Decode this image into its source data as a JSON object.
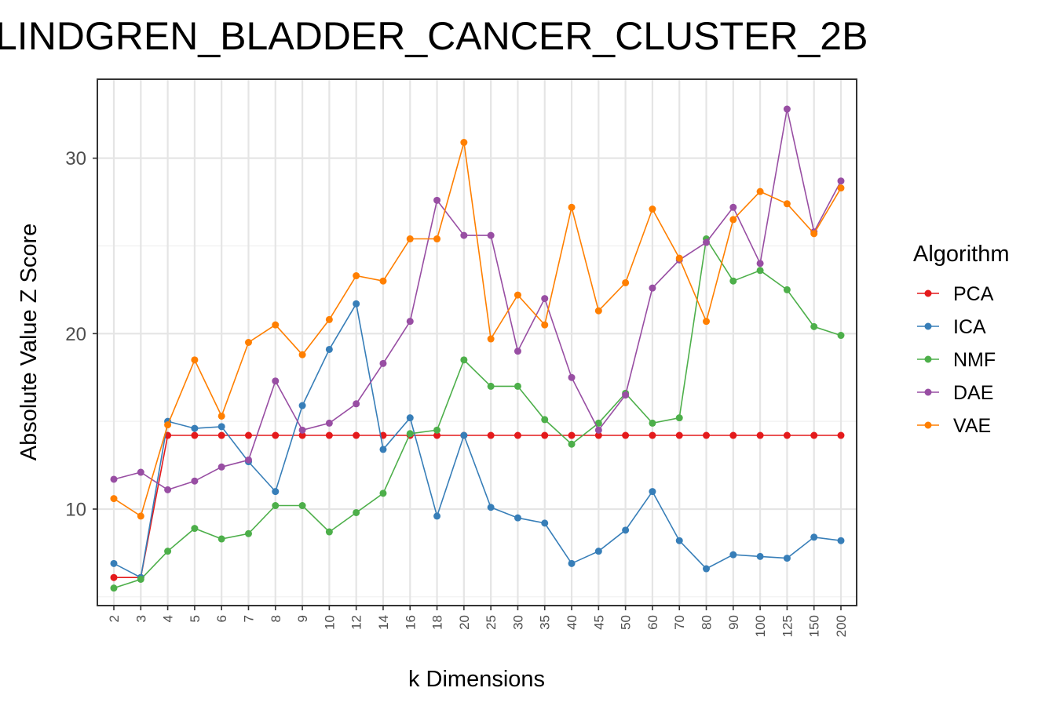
{
  "chart_data": {
    "type": "line",
    "title": "LINDGREN_BLADDER_CANCER_CLUSTER_2B",
    "xlabel": "k Dimensions",
    "ylabel": "Absolute Value Z Score",
    "categories": [
      "2",
      "3",
      "4",
      "5",
      "6",
      "7",
      "8",
      "9",
      "10",
      "12",
      "14",
      "16",
      "18",
      "20",
      "25",
      "30",
      "35",
      "40",
      "45",
      "50",
      "60",
      "70",
      "80",
      "90",
      "100",
      "125",
      "150",
      "200"
    ],
    "ylim": [
      4.5,
      34.5
    ],
    "yticks": [
      10,
      20,
      30
    ],
    "grid": true,
    "legend": {
      "title": "Algorithm",
      "position": "right"
    },
    "series": [
      {
        "name": "PCA",
        "color": "#e41a1c",
        "values": [
          6.1,
          6.1,
          14.2,
          14.2,
          14.2,
          14.2,
          14.2,
          14.2,
          14.2,
          14.2,
          14.2,
          14.2,
          14.2,
          14.2,
          14.2,
          14.2,
          14.2,
          14.2,
          14.2,
          14.2,
          14.2,
          14.2,
          14.2,
          14.2,
          14.2,
          14.2,
          14.2,
          14.2
        ]
      },
      {
        "name": "ICA",
        "color": "#377eb8",
        "values": [
          6.9,
          6.1,
          15.0,
          14.6,
          14.7,
          12.7,
          11.0,
          15.9,
          19.1,
          21.7,
          13.4,
          15.2,
          9.6,
          14.2,
          10.1,
          9.5,
          9.2,
          6.9,
          7.6,
          8.8,
          11.0,
          8.2,
          6.6,
          7.4,
          7.3,
          7.2,
          8.4,
          8.2
        ]
      },
      {
        "name": "NMF",
        "color": "#4daf4a",
        "values": [
          5.5,
          6.0,
          7.6,
          8.9,
          8.3,
          8.6,
          10.2,
          10.2,
          8.7,
          9.8,
          10.9,
          14.3,
          14.5,
          18.5,
          17.0,
          17.0,
          15.1,
          13.7,
          14.9,
          16.6,
          14.9,
          15.2,
          25.4,
          23.0,
          23.6,
          22.5,
          20.4,
          19.9
        ]
      },
      {
        "name": "DAE",
        "color": "#984ea3",
        "values": [
          11.7,
          12.1,
          11.1,
          11.6,
          12.4,
          12.8,
          17.3,
          14.5,
          14.9,
          16.0,
          18.3,
          20.7,
          27.6,
          25.6,
          25.6,
          19.0,
          22.0,
          17.5,
          14.5,
          16.5,
          22.6,
          24.2,
          25.2,
          27.2,
          24.0,
          32.8,
          25.8,
          28.7
        ]
      },
      {
        "name": "VAE",
        "color": "#ff7f00",
        "values": [
          10.6,
          9.6,
          14.8,
          18.5,
          15.3,
          19.5,
          20.5,
          18.8,
          20.8,
          23.3,
          23.0,
          25.4,
          25.4,
          30.9,
          19.7,
          22.2,
          20.5,
          27.2,
          21.3,
          22.9,
          27.1,
          24.3,
          20.7,
          26.5,
          28.1,
          27.4,
          25.7,
          28.3
        ]
      }
    ]
  }
}
